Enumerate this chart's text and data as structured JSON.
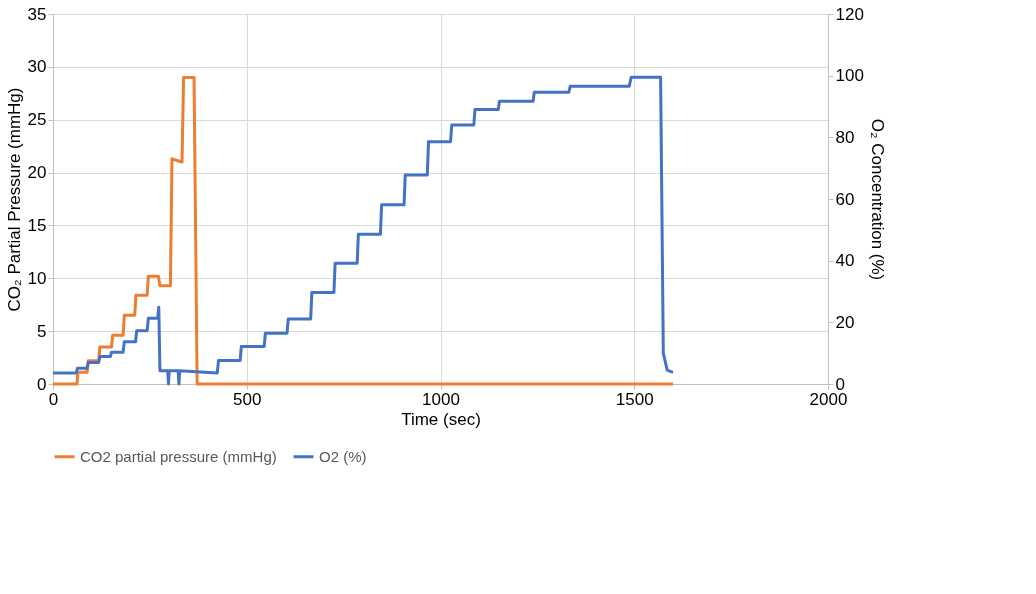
{
  "chart_data": {
    "type": "line",
    "xlabel": "Time (sec)",
    "ylabel": "CO₂ Partial Pressure (mmHg)",
    "y2label": "O₂ Concentration (%)",
    "xlim": [
      0,
      2000
    ],
    "xticks": [
      0,
      500,
      1000,
      1500,
      2000
    ],
    "ylim": [
      0,
      35
    ],
    "yticks": [
      0,
      5,
      10,
      15,
      20,
      25,
      30,
      35
    ],
    "y2lim": [
      0,
      120
    ],
    "y2ticks": [
      0,
      20,
      40,
      60,
      80,
      100,
      120
    ],
    "grid": true,
    "legend": "bottom",
    "marker": "none",
    "line_style": "solid",
    "series": [
      {
        "name": "CO2 partial pressure (mmHg)",
        "color": "#ed7d31",
        "axis": "y",
        "x": [
          0,
          62,
          64,
          88,
          91,
          118,
          121,
          151,
          154,
          181,
          184,
          211,
          214,
          243,
          246,
          272,
          276,
          303,
          307,
          333,
          337,
          364,
          372,
          1600
        ],
        "values": [
          0,
          0,
          1.1,
          1.1,
          2.2,
          2.2,
          3.5,
          3.5,
          4.6,
          4.6,
          6.5,
          6.5,
          8.4,
          8.4,
          10.2,
          10.2,
          9.3,
          9.3,
          21.3,
          21.0,
          29.0,
          29.0,
          0,
          0
        ]
      },
      {
        "name": "O2 (%)",
        "color": "#4472c4",
        "axis": "y2",
        "x": [
          0,
          60,
          63,
          88,
          91,
          118,
          121,
          148,
          151,
          181,
          184,
          213,
          216,
          243,
          246,
          270,
          273,
          276,
          296,
          298,
          300,
          323,
          325,
          327,
          424,
          427,
          483,
          486,
          545,
          548,
          604,
          607,
          665,
          668,
          725,
          728,
          785,
          788,
          845,
          848,
          906,
          909,
          966,
          969,
          1026,
          1029,
          1086,
          1089,
          1149,
          1152,
          1239,
          1242,
          1331,
          1335,
          1487,
          1492,
          1568,
          1575,
          1585,
          1600
        ],
        "values": [
          3.6,
          3.6,
          5.1,
          5.1,
          7.0,
          7.0,
          8.9,
          8.9,
          10.3,
          10.3,
          13.7,
          13.7,
          17.3,
          17.3,
          21.3,
          21.3,
          24.9,
          4.3,
          4.3,
          0,
          4.3,
          4.3,
          0,
          4.3,
          3.6,
          7.6,
          7.6,
          12.2,
          12.2,
          16.5,
          16.5,
          21.1,
          21.1,
          29.7,
          29.7,
          39.2,
          39.2,
          48.6,
          48.6,
          58.1,
          58.1,
          67.8,
          67.8,
          78.6,
          78.6,
          84.0,
          84.0,
          89.0,
          89.0,
          91.7,
          91.7,
          94.6,
          94.6,
          96.6,
          96.6,
          99.5,
          99.5,
          10,
          4.5,
          3.8
        ]
      }
    ]
  }
}
